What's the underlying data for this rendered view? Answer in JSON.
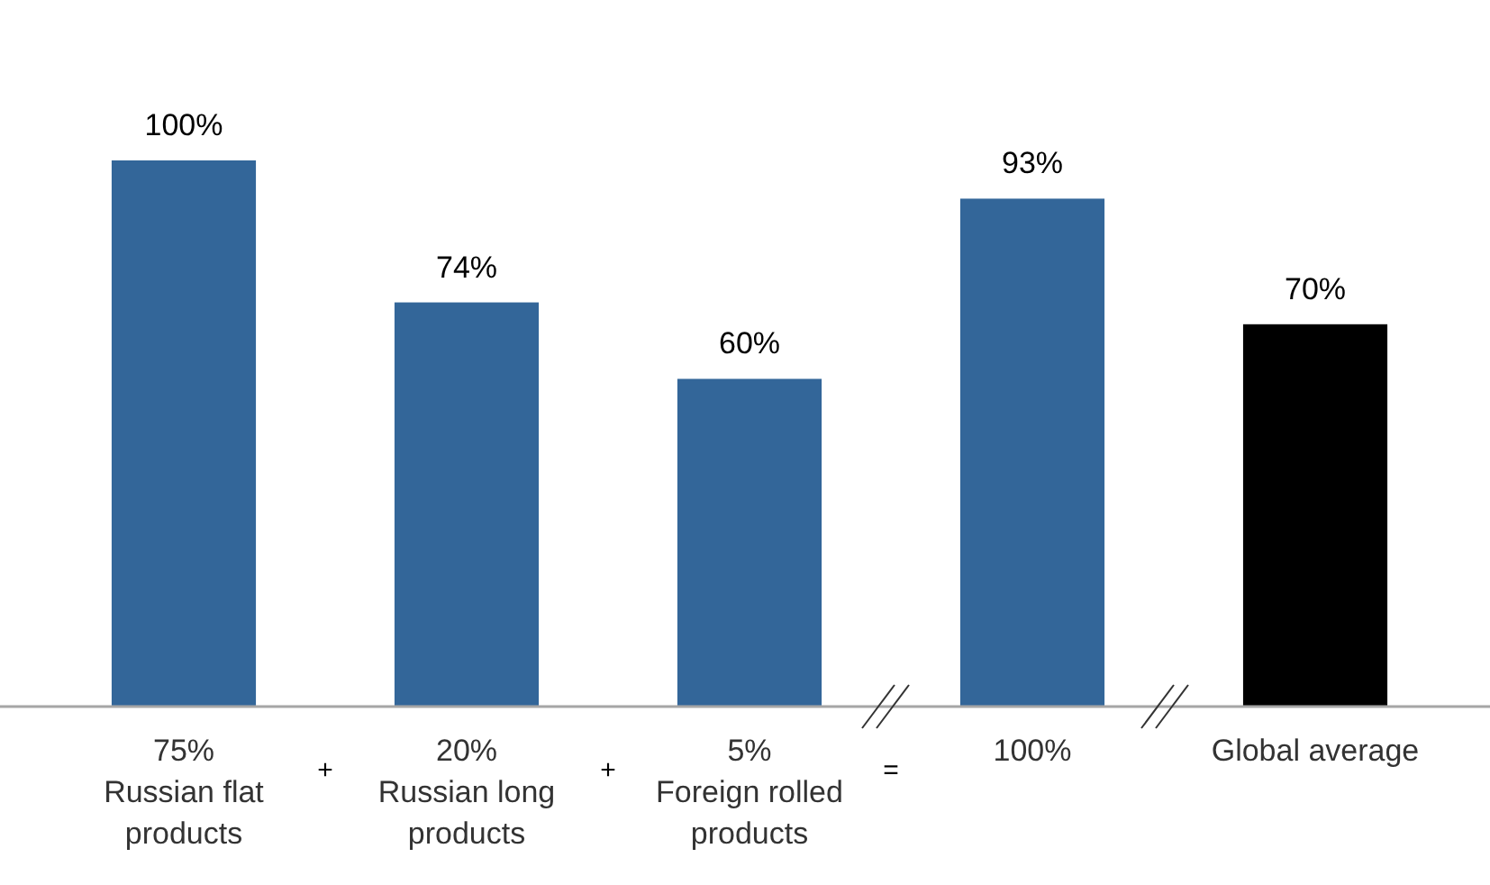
{
  "chart_data": {
    "type": "bar",
    "categories": [
      "75%\nRussian flat\nproducts",
      "20%\nRussian long\nproducts",
      "5%\nForeign rolled\nproducts",
      "100%",
      "Global average"
    ],
    "values": [
      100,
      74,
      60,
      93,
      70
    ],
    "colors": [
      "#336699",
      "#336699",
      "#336699",
      "#336699",
      "#000000"
    ],
    "value_labels": [
      "100%",
      "74%",
      "60%",
      "93%",
      "70%"
    ],
    "annotations": [
      "+",
      "+",
      "="
    ]
  }
}
